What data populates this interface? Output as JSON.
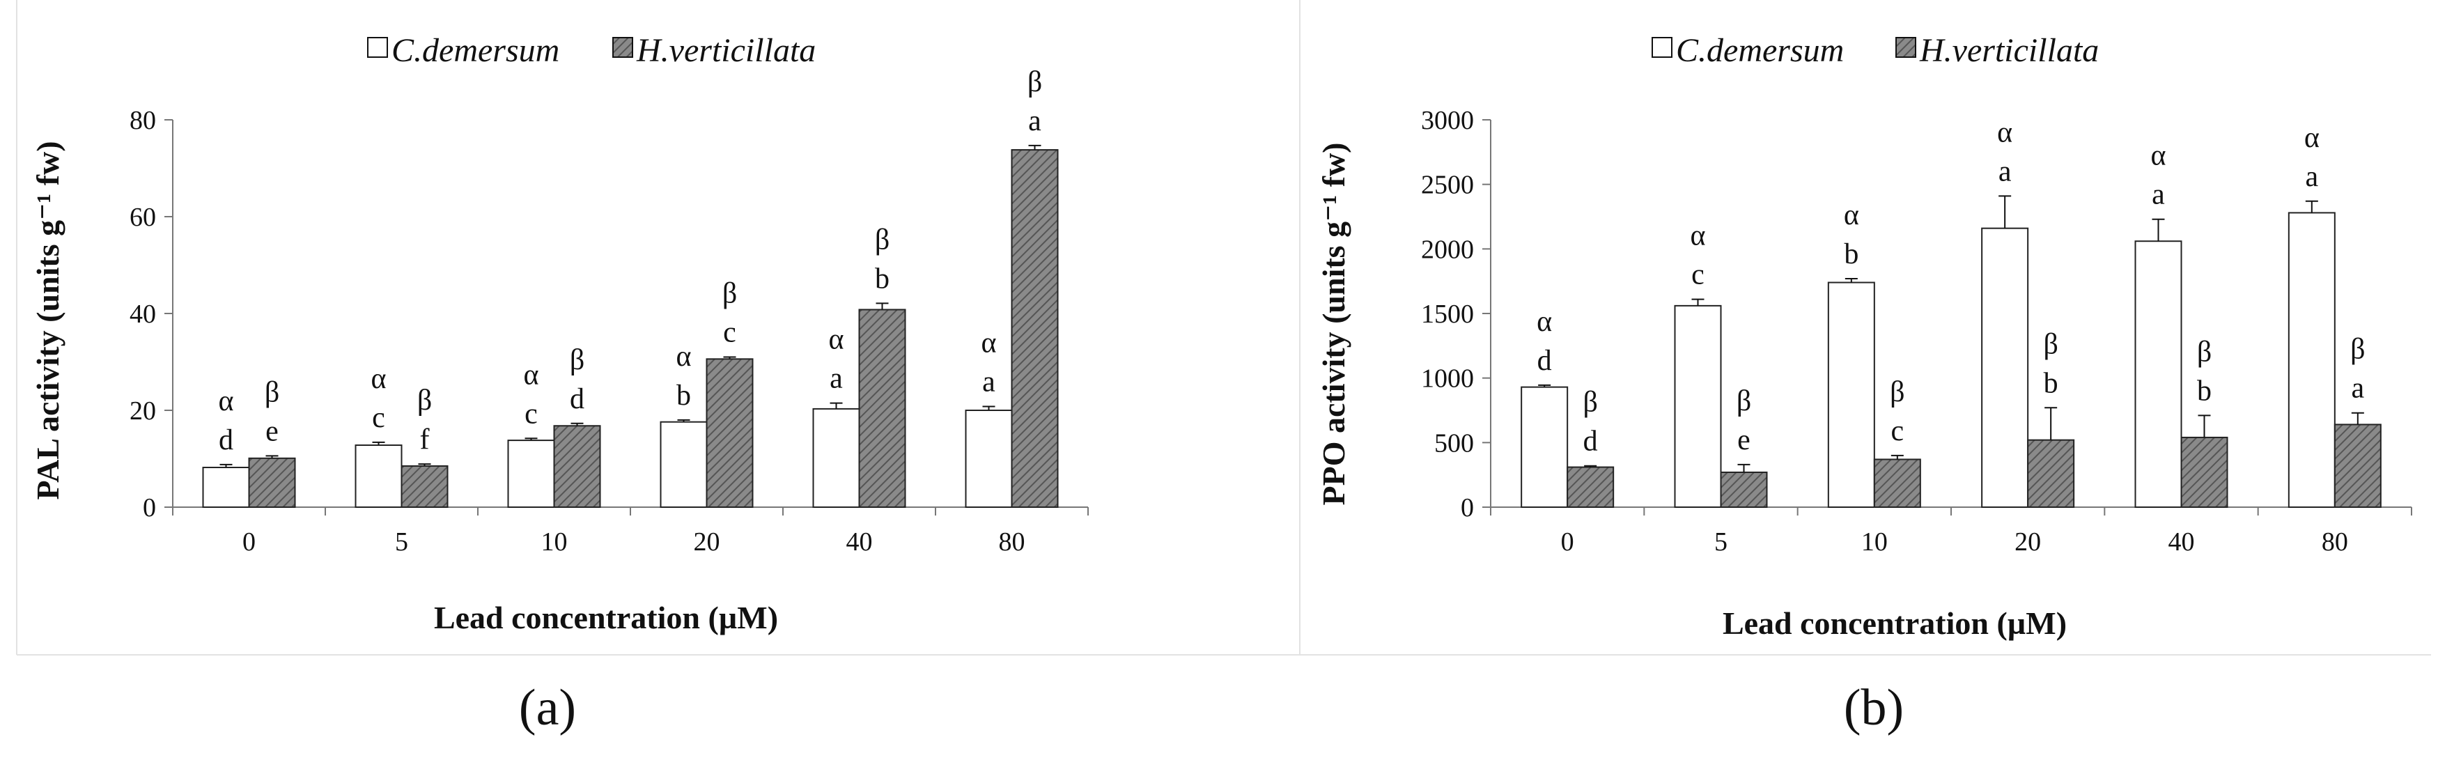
{
  "chart_data": [
    {
      "type": "bar",
      "panel_label": "(a)",
      "xlabel": "Lead concentration (µM)",
      "ylabel": "PAL activity (units g⁻¹ fw)",
      "ylim": [
        0,
        80
      ],
      "yticks": [
        0,
        20,
        40,
        60,
        80
      ],
      "categories": [
        "0",
        "5",
        "10",
        "20",
        "40",
        "80"
      ],
      "grid": false,
      "legend_position": "top-center",
      "series": [
        {
          "name": "C.demersum",
          "fill": "#ffffff",
          "values": [
            8.2,
            12.8,
            13.8,
            17.6,
            20.3,
            20.0
          ],
          "errors": [
            0.6,
            0.6,
            0.4,
            0.4,
            1.2,
            0.8
          ],
          "letters": [
            "d",
            "c",
            "c",
            "b",
            "a",
            "a"
          ],
          "group_symbol": [
            "α",
            "α",
            "α",
            "α",
            "α",
            "α"
          ]
        },
        {
          "name": "H.verticillata",
          "fill": "hatched-gray",
          "values": [
            10.1,
            8.5,
            16.8,
            30.6,
            40.8,
            73.8
          ],
          "errors": [
            0.5,
            0.4,
            0.5,
            0.4,
            1.3,
            0.9
          ],
          "letters": [
            "e",
            "f",
            "d",
            "c",
            "b",
            "a"
          ],
          "group_symbol": [
            "β",
            "β",
            "β",
            "β",
            "β",
            "β"
          ]
        }
      ]
    },
    {
      "type": "bar",
      "panel_label": "(b)",
      "xlabel": "Lead concentration (µM)",
      "ylabel": "PPO activity (units g⁻¹ fw)",
      "ylim": [
        0,
        3000
      ],
      "yticks": [
        0,
        500,
        1000,
        1500,
        2000,
        2500,
        3000
      ],
      "categories": [
        "0",
        "5",
        "10",
        "20",
        "40",
        "80"
      ],
      "grid": false,
      "legend_position": "top-center",
      "series": [
        {
          "name": "C.demersum",
          "fill": "#ffffff",
          "values": [
            930,
            1560,
            1740,
            2160,
            2060,
            2280
          ],
          "errors": [
            15,
            50,
            30,
            250,
            170,
            90
          ],
          "letters": [
            "d",
            "c",
            "b",
            "a",
            "a",
            "a"
          ],
          "group_symbol": [
            "α",
            "α",
            "α",
            "α",
            "α",
            "α"
          ]
        },
        {
          "name": "H.verticillata",
          "fill": "hatched-gray",
          "values": [
            310,
            270,
            370,
            520,
            540,
            640
          ],
          "errors": [
            10,
            60,
            30,
            250,
            170,
            90
          ],
          "letters": [
            "d",
            "e",
            "c",
            "b",
            "b",
            "a"
          ],
          "group_symbol": [
            "β",
            "β",
            "β",
            "β",
            "β",
            "β"
          ]
        }
      ]
    }
  ]
}
